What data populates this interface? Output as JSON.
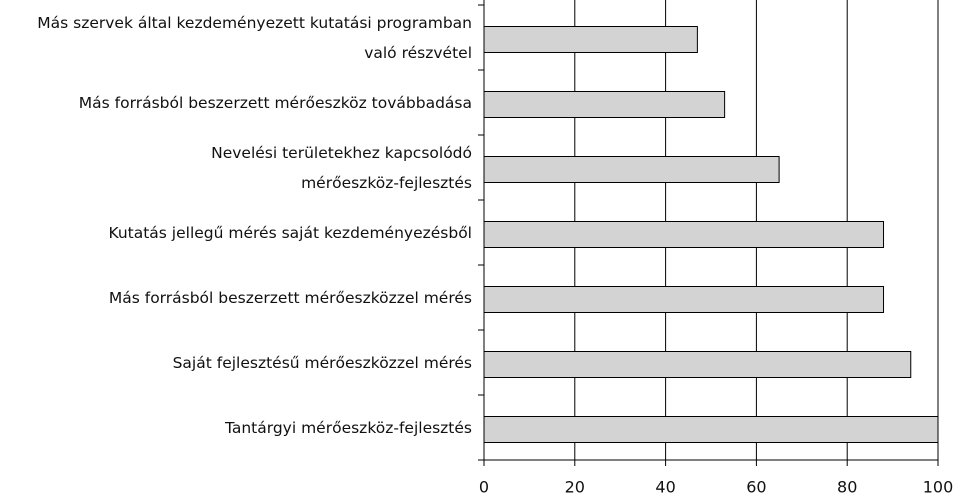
{
  "chart_data": {
    "type": "bar",
    "orientation": "horizontal",
    "categories": [
      "Más szervek által kezdeményezett kutatási programban\nvaló részvétel",
      "Más forrásból beszerzett mérőeszköz továbbadása",
      "Nevelési területekhez kapcsolódó\nmérőeszköz-fejlesztés",
      "Kutatás jellegű mérés saját kezdeményezésből",
      "Más forrásból beszerzett mérőeszközzel mérés",
      "Saját fejlesztésű mérőeszközzel mérés",
      "Tantárgyi mérőeszköz-fejlesztés"
    ],
    "values": [
      47,
      53,
      65,
      88,
      88,
      94,
      100
    ],
    "color": "#d3d3d3",
    "xlim": [
      0,
      100
    ],
    "xticks": [
      0,
      20,
      40,
      60,
      80,
      100
    ],
    "grid": true
  }
}
